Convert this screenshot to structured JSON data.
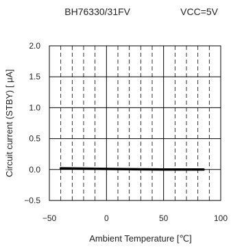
{
  "chart_data": {
    "type": "line",
    "title_part": "BH76330/31FV",
    "condition": "VCC=5V",
    "xlabel": "Ambient Temperature [℃]",
    "ylabel": "Circuit current (STBY) [ μA]",
    "xlim": [
      -50,
      100
    ],
    "ylim": [
      -0.5,
      2.0
    ],
    "xticks": [
      -50,
      0,
      50,
      100
    ],
    "yticks": [
      -0.5,
      0.0,
      0.5,
      1.0,
      1.5,
      2.0
    ],
    "xtick_labels": [
      "−50",
      "0",
      "50",
      "100"
    ],
    "ytick_labels": [
      "−0.5",
      "0.0",
      "0.5",
      "1.0",
      "1.5",
      "2.0"
    ],
    "grid": true,
    "series": [
      {
        "x": [
          -40,
          0,
          25,
          50,
          85
        ],
        "y": [
          0.02,
          0.01,
          0.005,
          0.0,
          0.0
        ]
      }
    ],
    "colors": {
      "line": "#000000",
      "grid": "#000000",
      "frame": "#000000"
    }
  }
}
